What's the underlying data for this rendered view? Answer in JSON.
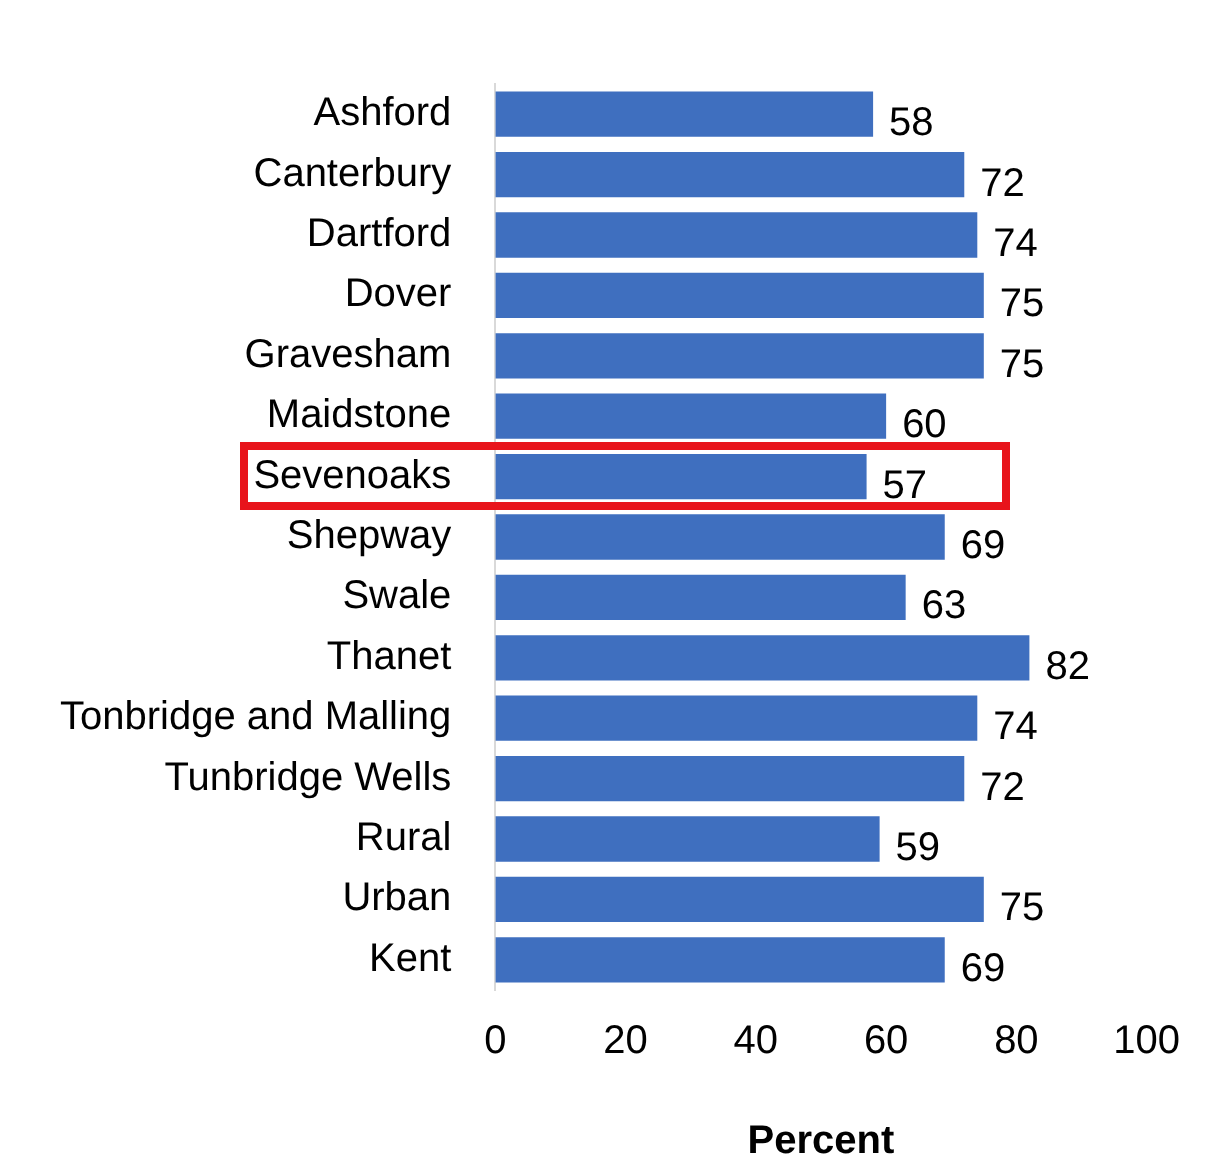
{
  "chart_data": {
    "type": "bar",
    "orientation": "horizontal",
    "xlabel": "Percent",
    "categories": [
      "Ashford",
      "Canterbury",
      "Dartford",
      "Dover",
      "Gravesham",
      "Maidstone",
      "Sevenoaks",
      "Shepway",
      "Swale",
      "Thanet",
      "Tonbridge and Malling",
      "Tunbridge Wells",
      "Rural",
      "Urban",
      "Kent"
    ],
    "values": [
      58,
      72,
      74,
      75,
      75,
      60,
      57,
      69,
      63,
      82,
      74,
      72,
      59,
      75,
      69
    ],
    "color": "#3f6fbf",
    "xlim": [
      0,
      100
    ],
    "xticks": [
      0,
      20,
      40,
      60,
      80,
      100
    ],
    "data_labels": true,
    "grid": false,
    "legend": false
  }
}
